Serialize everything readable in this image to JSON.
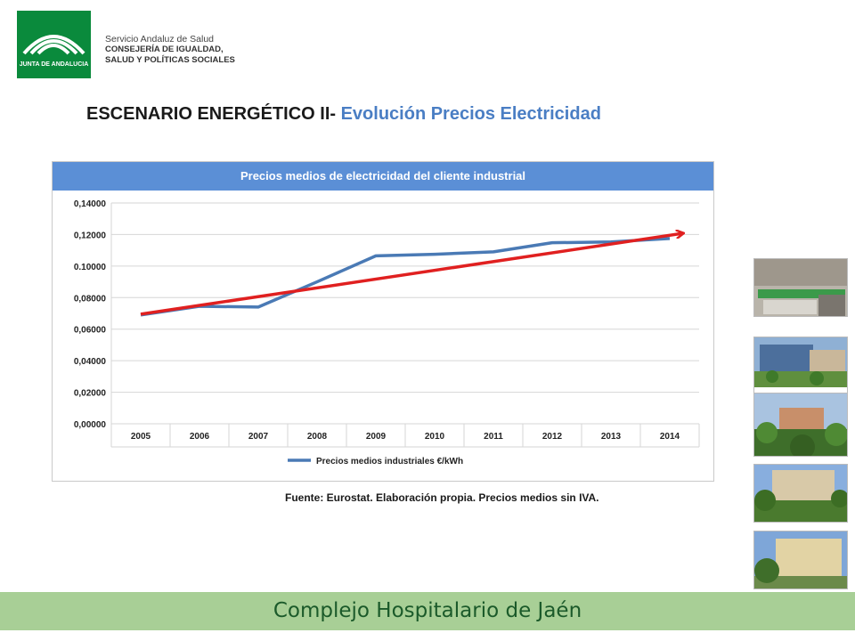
{
  "header": {
    "logo_caption": "JUNTA DE ANDALUCIA",
    "org_line1": "Servicio Andaluz de Salud",
    "org_line2": "CONSEJERÍA DE IGUALDAD,",
    "org_line3": "SALUD Y POLÍTICAS SOCIALES"
  },
  "slide": {
    "title_main": "ESCENARIO ENERGÉTICO II-",
    "title_accent": " Evolución Precios Electricidad",
    "source_note": "Fuente: Eurostat. Elaboración propia. Precios medios sin IVA."
  },
  "chart_data": {
    "type": "line",
    "title": "Precios medios de electricidad del cliente industrial",
    "categories": [
      "2005",
      "2006",
      "2007",
      "2008",
      "2009",
      "2010",
      "2011",
      "2012",
      "2013",
      "2014"
    ],
    "series": [
      {
        "name": "Precios medios industriales €/kWh",
        "values": [
          0.069,
          0.0745,
          0.074,
          0.09,
          0.1065,
          0.1075,
          0.109,
          0.1148,
          0.1153,
          0.1175
        ],
        "color": "#4a7ab5"
      }
    ],
    "trend_line": {
      "from": [
        0,
        0.0695
      ],
      "to": [
        9,
        0.119
      ],
      "color": "#e02020",
      "arrow": true
    },
    "y_ticks": [
      "0,00000",
      "0,02000",
      "0,04000",
      "0,06000",
      "0,08000",
      "0.10000",
      "0,12000",
      "0,14000"
    ],
    "ylim": [
      0,
      0.14
    ],
    "grid": true,
    "legend_position": "bottom"
  },
  "sidebar_photos": [
    "building-photo-1",
    "building-photo-2",
    "building-photo-3",
    "building-photo-4",
    "building-photo-5"
  ],
  "footer": {
    "text": "Complejo Hospitalario de Jaén"
  }
}
